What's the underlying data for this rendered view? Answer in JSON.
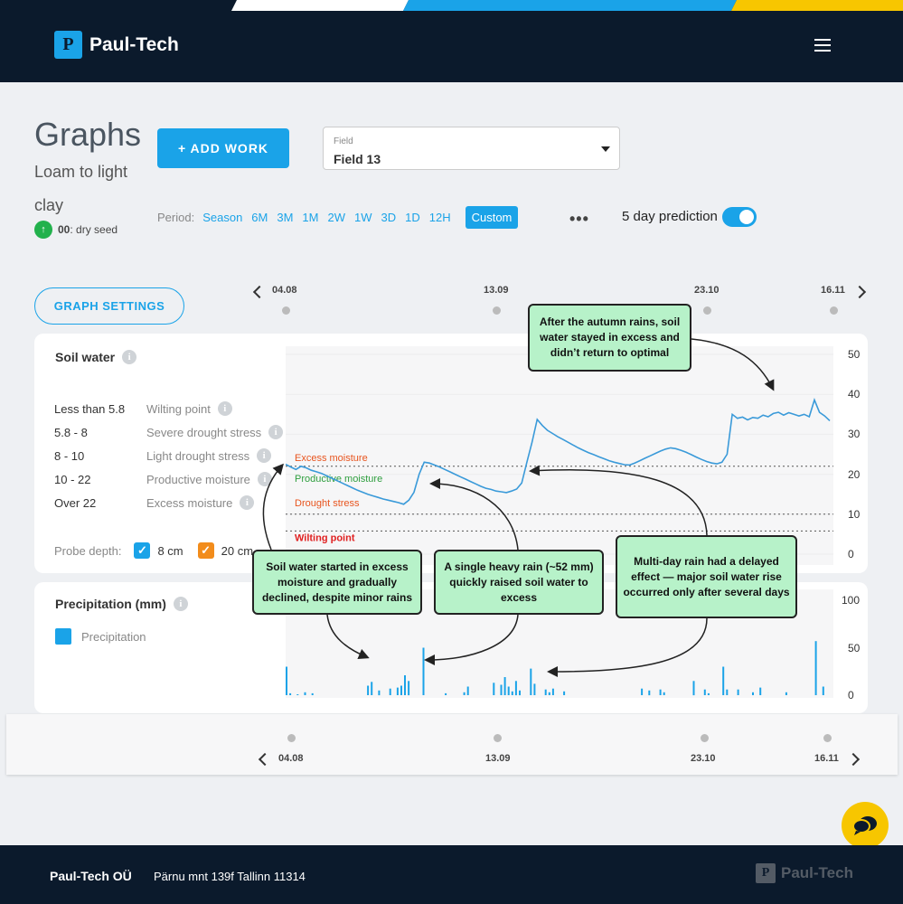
{
  "header": {
    "logo_mark": "P",
    "logo_text": "Paul-Tech"
  },
  "page": {
    "title": "Graphs",
    "subtitle": "Loam to light clay",
    "seed_badge": "00",
    "seed_text": ": dry seed",
    "add_work_label": "+ ADD WORK",
    "field_label": "Field",
    "field_value": "Field 13",
    "period_label": "Period:",
    "periods": [
      "Season",
      "6M",
      "3M",
      "1M",
      "2W",
      "1W",
      "3D",
      "1D",
      "12H"
    ],
    "period_active": "Custom",
    "more": "•••",
    "prediction_label": "5 day prediction",
    "prediction_on": true,
    "graph_settings_label": "GRAPH SETTINGS"
  },
  "timeline": {
    "dates": [
      "04.08",
      "13.09",
      "23.10",
      "16.11"
    ]
  },
  "soil_card": {
    "title": "Soil water",
    "legend": [
      {
        "range": "Less than 5.8",
        "name": "Wilting point"
      },
      {
        "range": "5.8 - 8",
        "name": "Severe drought stress"
      },
      {
        "range": "8 - 10",
        "name": "Light drought stress"
      },
      {
        "range": "10 - 22",
        "name": "Productive moisture"
      },
      {
        "range": "Over 22",
        "name": "Excess moisture"
      }
    ],
    "probe_label": "Probe depth:",
    "probes": [
      {
        "label": "8 cm",
        "color": "#1aa3e8"
      },
      {
        "label": "20 cm",
        "color": "#f28c1b"
      }
    ],
    "zone_labels": [
      {
        "text": "Excess moisture",
        "color": "#e8541e",
        "value": 22
      },
      {
        "text": "Productive moisture",
        "color": "#2e9e3e",
        "value": 22
      },
      {
        "text": "Drought stress",
        "color": "#e8541e",
        "value": 10
      },
      {
        "text": "Wilting point",
        "color": "#e02020",
        "value": 5.8
      }
    ],
    "y_ticks": [
      "50",
      "40",
      "30",
      "20",
      "10",
      "0"
    ]
  },
  "precip_card": {
    "title": "Precipitation (mm)",
    "legend_label": "Precipitation",
    "legend_color": "#1aa3e8",
    "y_ticks": [
      "100",
      "50",
      "0"
    ]
  },
  "chart_data": [
    {
      "type": "line",
      "title": "Soil water",
      "ylim": [
        0,
        50
      ],
      "xlabel": "",
      "ylabel": "",
      "x_ticks": [
        "04.08",
        "13.09",
        "23.10",
        "16.11"
      ],
      "series": [
        {
          "color": "#3a9ad9",
          "values": [
            22.5,
            21.8,
            21.2,
            22.0,
            21.6,
            21.0,
            20.6,
            20.2,
            19.6,
            19.0,
            18.4,
            17.8,
            17.2,
            16.6,
            16.0,
            15.5,
            15.0,
            14.6,
            14.2,
            13.8,
            13.5,
            13.2,
            12.9,
            12.5,
            13.5,
            15.5,
            20.0,
            23.0,
            22.8,
            22.3,
            21.8,
            21.2,
            20.6,
            20.0,
            19.4,
            18.8,
            18.2,
            17.6,
            17.0,
            16.5,
            16.2,
            15.8,
            15.6,
            15.4,
            15.8,
            16.3,
            17.8,
            23.0,
            28.0,
            33.7,
            32.2,
            31.0,
            30.2,
            29.4,
            28.7,
            28.0,
            27.3,
            26.6,
            26.0,
            25.4,
            24.9,
            24.4,
            23.9,
            23.4,
            23.0,
            22.7,
            22.4,
            22.3,
            22.8,
            23.4,
            24.0,
            24.6,
            25.2,
            25.8,
            26.3,
            26.6,
            26.4,
            26.0,
            25.5,
            24.9,
            24.3,
            23.7,
            23.2,
            22.8,
            22.6,
            23.0,
            25.0,
            35.0,
            34.0,
            34.3,
            33.6,
            34.2,
            34.0,
            34.8,
            34.4,
            35.2,
            35.5,
            34.8,
            35.4,
            35.0,
            34.6,
            35.0,
            34.4,
            38.6,
            35.5,
            34.6,
            33.4
          ]
        }
      ]
    },
    {
      "type": "bar",
      "title": "Precipitation (mm)",
      "ylim": [
        0,
        100
      ],
      "series": [
        {
          "name": "Precipitation",
          "color": "#1aa3e8",
          "values": [
            30,
            2,
            0,
            1,
            0,
            3,
            0,
            2,
            0,
            0,
            0,
            0,
            0,
            0,
            0,
            0,
            0,
            0,
            0,
            0,
            0,
            0,
            10,
            14,
            0,
            5,
            0,
            0,
            7,
            0,
            8,
            10,
            21,
            15,
            0,
            0,
            0,
            50,
            0,
            0,
            0,
            0,
            0,
            2,
            0,
            0,
            0,
            0,
            3,
            9,
            0,
            0,
            0,
            0,
            0,
            0,
            13,
            0,
            11,
            19,
            9,
            4,
            15,
            5,
            0,
            0,
            28,
            12,
            0,
            0,
            6,
            3,
            7,
            0,
            0,
            4,
            0,
            0,
            0,
            0,
            0,
            0,
            0,
            0,
            0,
            0,
            0,
            0,
            0,
            0,
            0,
            0,
            0,
            0,
            0,
            0,
            7,
            0,
            5,
            0,
            0,
            6,
            3,
            0,
            0,
            0,
            0,
            0,
            0,
            0,
            15,
            0,
            0,
            6,
            2,
            0,
            0,
            0,
            30,
            6,
            0,
            0,
            6,
            0,
            0,
            0,
            3,
            0,
            8,
            0,
            0,
            0,
            0,
            0,
            0,
            3,
            0,
            0,
            0,
            0,
            0,
            0,
            0,
            57,
            0,
            9,
            0,
            0
          ]
        }
      ]
    }
  ],
  "annotations": [
    "After the autumn rains, soil water stayed in excess and didn’t return to optimal",
    "Soil water started in excess moisture and gradually declined, despite minor rains",
    "A single heavy rain (~52 mm) quickly raised soil water to excess",
    "Multi-day rain had a delayed effect — major soil water rise occurred only after several days"
  ],
  "footer": {
    "company": "Paul-Tech OÜ",
    "address": "Pärnu mnt 139f Tallinn 11314",
    "logo_text": "Paul-Tech"
  }
}
